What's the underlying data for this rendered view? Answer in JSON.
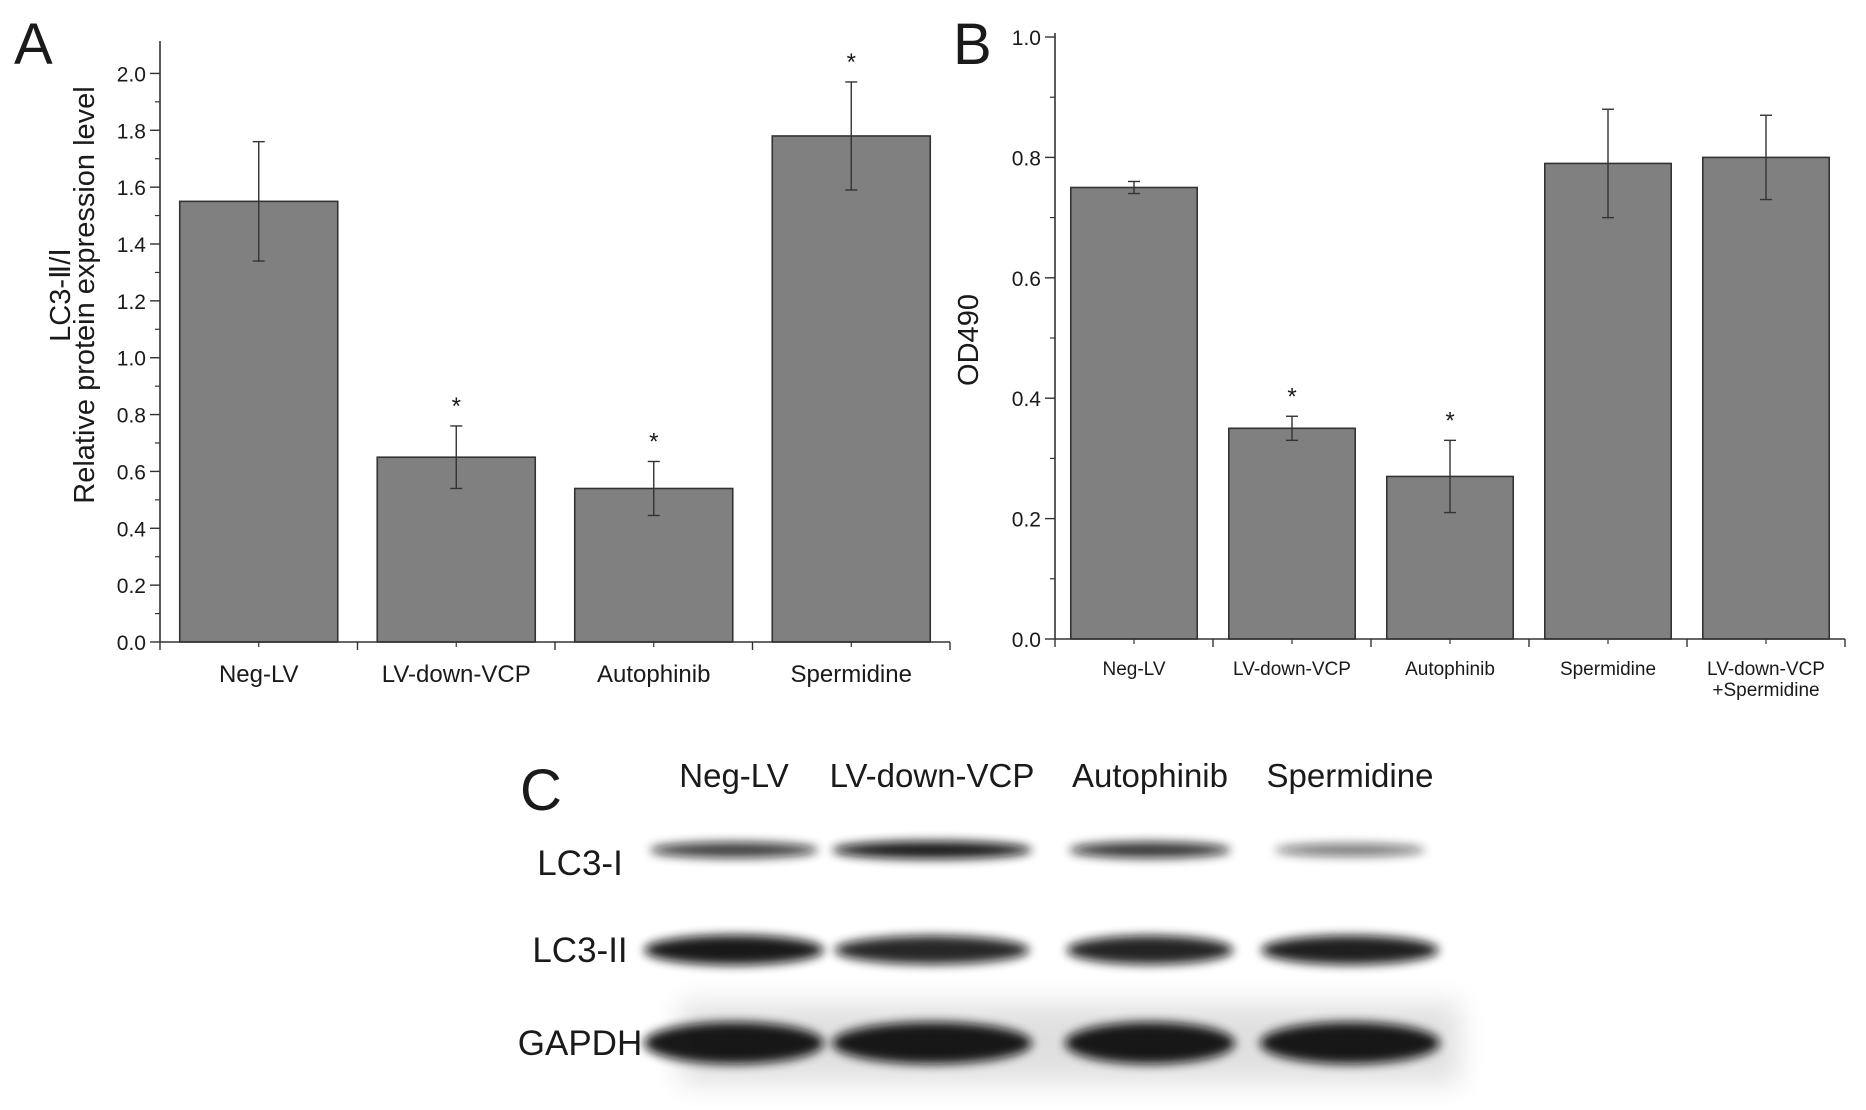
{
  "panels": {
    "a_letter": "A",
    "b_letter": "B",
    "c_letter": "C"
  },
  "chart_data": [
    {
      "type": "bar",
      "panel": "A",
      "title": "",
      "ylabel_line1": "LC3-Ⅱ/Ⅰ",
      "ylabel_line2": "Relative protein expression level",
      "xlabel": "",
      "categories": [
        "Neg-LV",
        "LV-down-VCP",
        "Autophinib",
        "Spermidine"
      ],
      "values": [
        1.55,
        0.65,
        0.54,
        1.78
      ],
      "errors": [
        0.21,
        0.11,
        0.095,
        0.19
      ],
      "significance": [
        "",
        "*",
        "*",
        "*"
      ],
      "ylim": [
        0,
        2.1
      ],
      "yticks": [
        "0.0",
        "0.2",
        "0.4",
        "0.6",
        "0.8",
        "1.0",
        "1.2",
        "1.4",
        "1.6",
        "1.8",
        "2.0"
      ],
      "bar_color": "#808080",
      "grid": false
    },
    {
      "type": "bar",
      "panel": "B",
      "title": "",
      "ylabel": "OD490",
      "xlabel": "",
      "categories": [
        "Neg-LV",
        "LV-down-VCP",
        "Autophinib",
        "Spermidine",
        "LV-down-VCP\n+Spermidine"
      ],
      "values": [
        0.75,
        0.35,
        0.27,
        0.79,
        0.8
      ],
      "errors": [
        0.01,
        0.02,
        0.06,
        0.09,
        0.07
      ],
      "significance": [
        "",
        "*",
        "*",
        "",
        ""
      ],
      "ylim": [
        0,
        1.0
      ],
      "yticks": [
        "0.0",
        "0.2",
        "0.4",
        "0.6",
        "0.8",
        "1.0"
      ],
      "bar_color": "#808080",
      "grid": false
    }
  ],
  "blot": {
    "lanes": [
      "Neg-LV",
      "LV-down-VCP",
      "Autophinib",
      "Spermidine"
    ],
    "rows": [
      {
        "label": "LC3-I",
        "intensities": [
          0.75,
          1.0,
          0.8,
          0.35
        ]
      },
      {
        "label": "LC3-II",
        "intensities": [
          1.0,
          0.9,
          0.92,
          0.95
        ]
      },
      {
        "label": "GAPDH",
        "intensities": [
          1.0,
          1.0,
          1.0,
          1.0
        ]
      }
    ]
  }
}
